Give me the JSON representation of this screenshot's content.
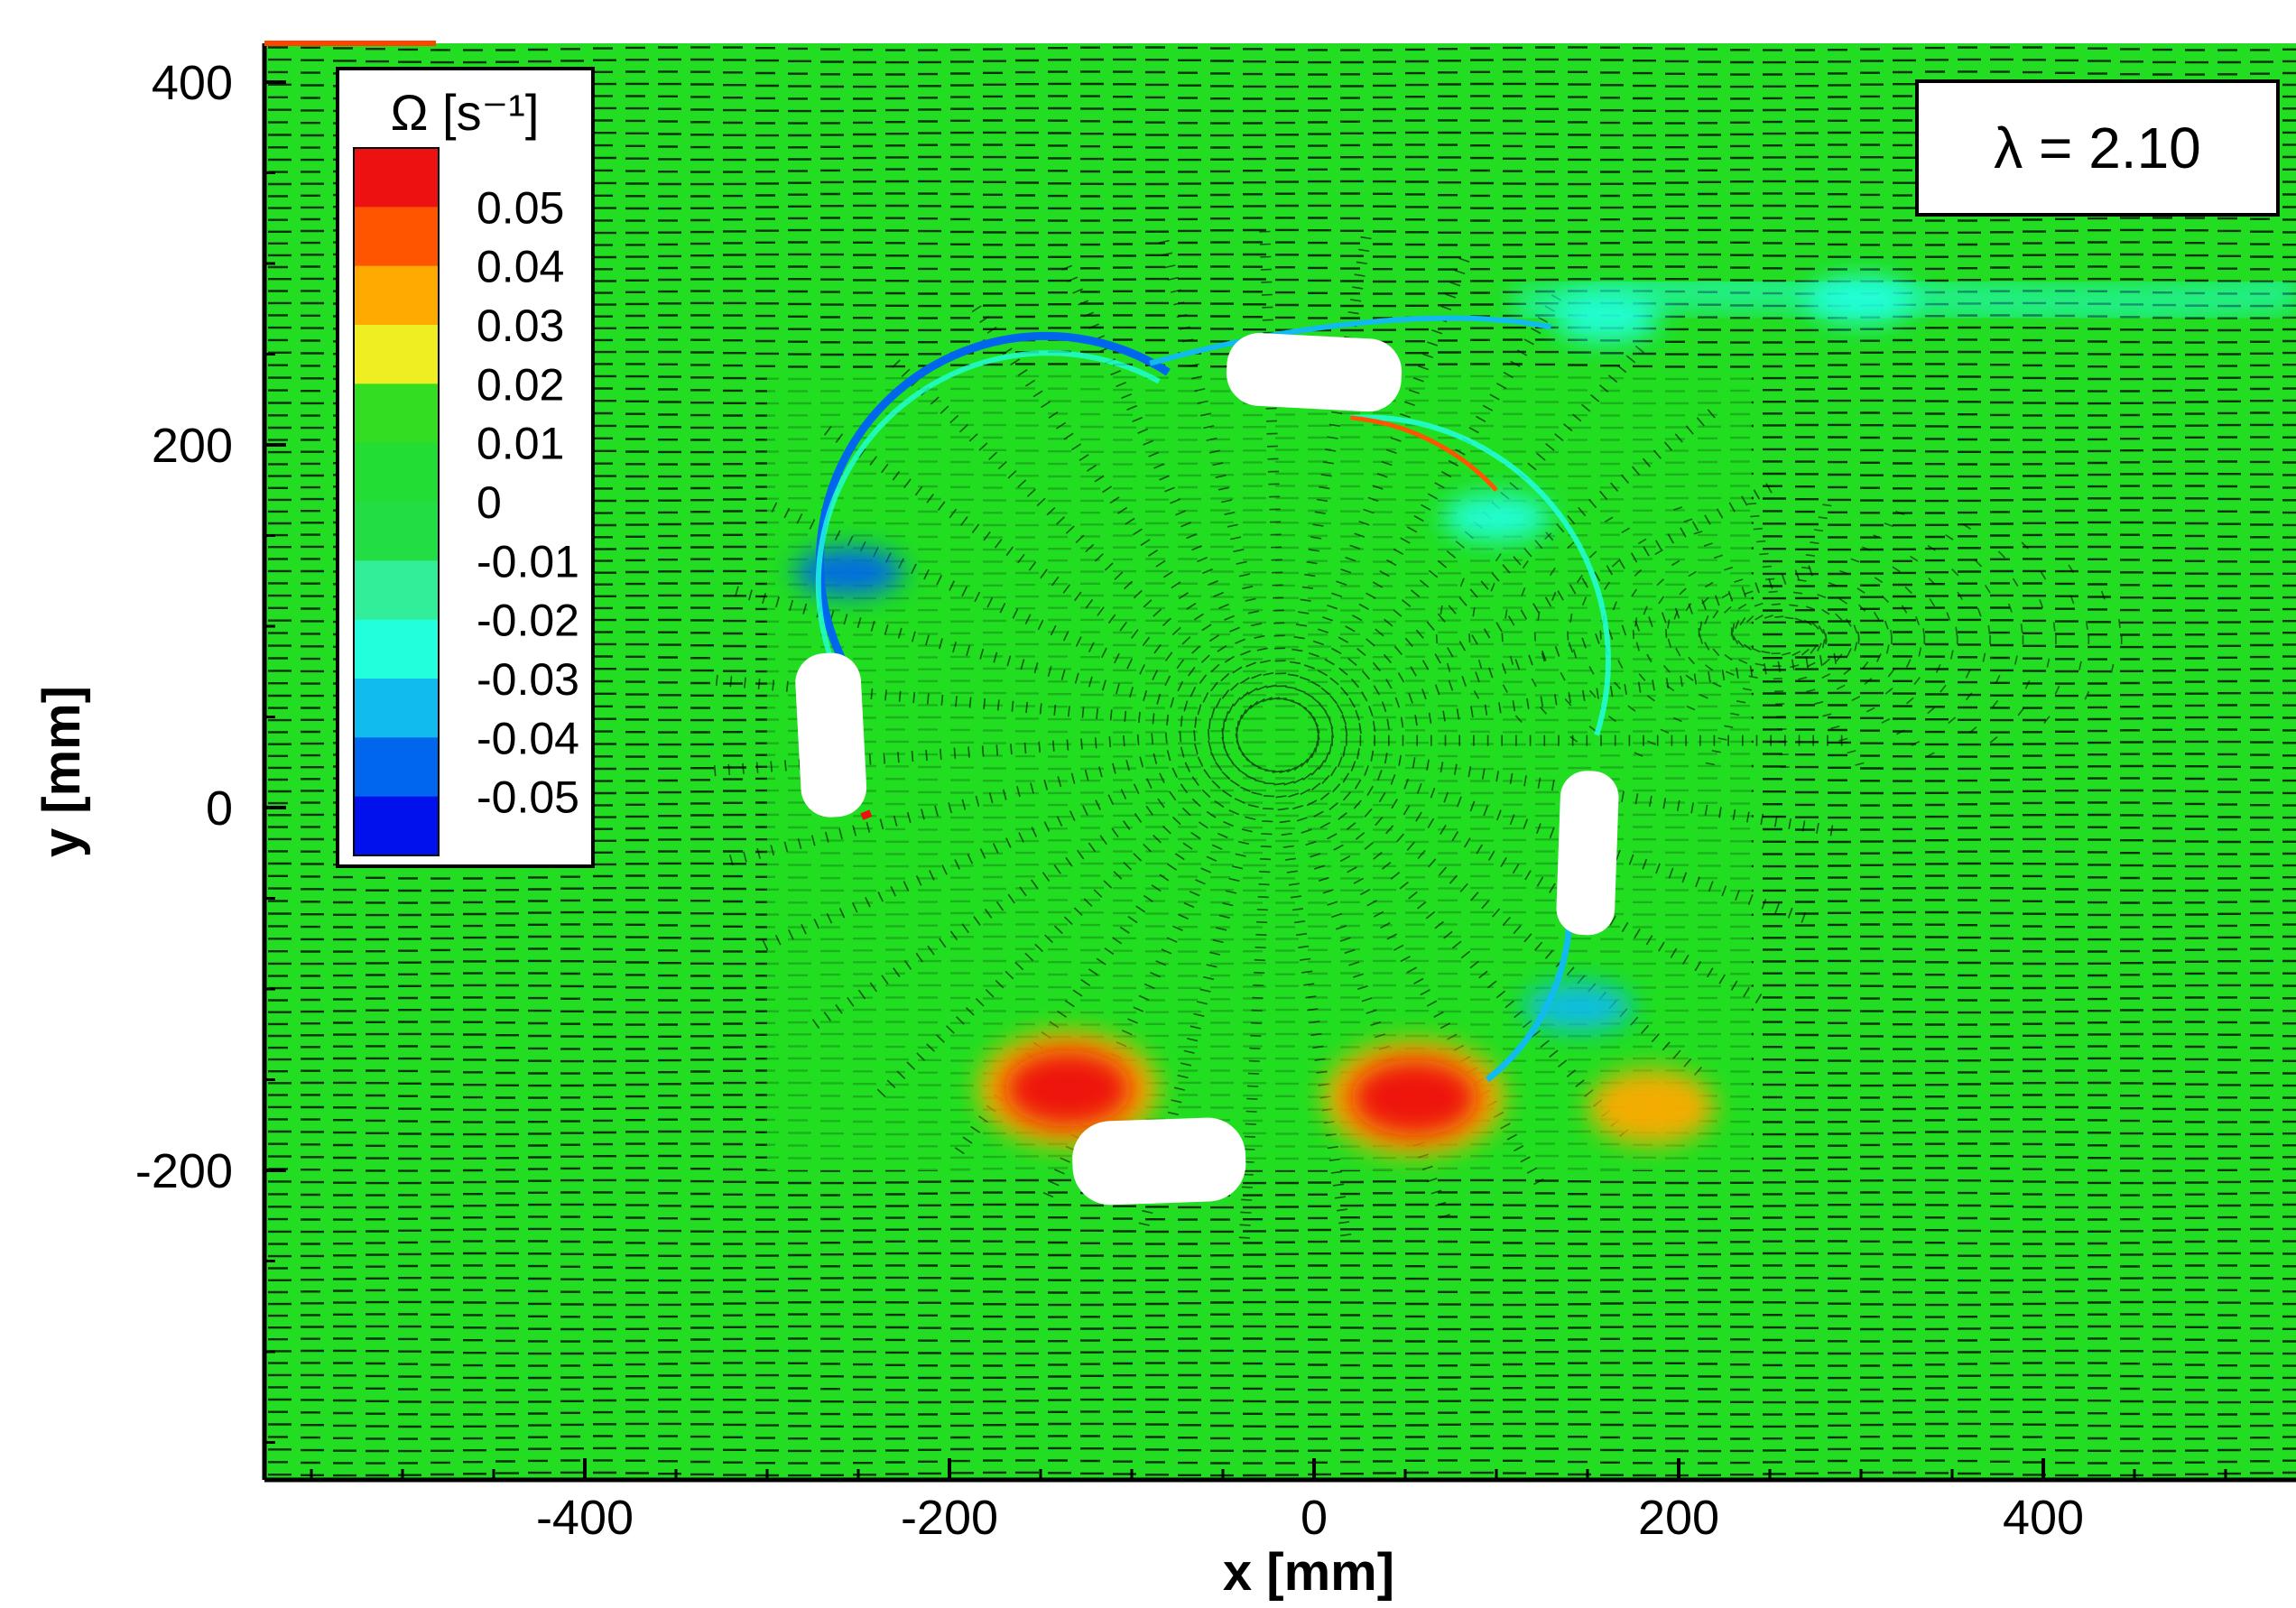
{
  "chart_data": {
    "type": "heatmap",
    "xlabel": "x [mm]",
    "ylabel": "y [mm]",
    "xlim": [
      -570,
      530
    ],
    "ylim": [
      -365,
      415
    ],
    "xticks": [
      -400,
      -200,
      0,
      200,
      400
    ],
    "yticks": [
      -200,
      0,
      200,
      400
    ],
    "annotation": "λ = 2.10",
    "background_color": "#22dd22",
    "vector_color": "#000000",
    "colorbar": {
      "title": "Ω [s⁻¹]",
      "levels": [
        0.05,
        0.04,
        0.03,
        0.02,
        0.01,
        0,
        -0.01,
        -0.02,
        -0.03,
        -0.04,
        -0.05
      ],
      "labels": [
        "0.05",
        "0.04",
        "0.03",
        "0.02",
        "0.01",
        "0",
        "-0.01",
        "-0.02",
        "-0.03",
        "-0.04",
        "-0.05"
      ],
      "colors": [
        "#ee1111",
        "#ff5500",
        "#ffaa00",
        "#eeee22",
        "#33dd22",
        "#22dd33",
        "#22dd44",
        "#33ee99",
        "#22ffdd",
        "#11bbee",
        "#0066ee",
        "#0011ee"
      ]
    },
    "blades": [
      {
        "x": 0,
        "y": 240
      },
      {
        "x": -265,
        "y": 40
      },
      {
        "x": 150,
        "y": -25
      },
      {
        "x": -85,
        "y": -195
      }
    ],
    "vorticity_regions": [
      {
        "x": -135,
        "y": -155,
        "value": 0.05
      },
      {
        "x": 55,
        "y": -160,
        "value": 0.05
      },
      {
        "x": 185,
        "y": -165,
        "value": 0.03
      },
      {
        "x": 300,
        "y": 280,
        "value": -0.03
      },
      {
        "x": 160,
        "y": 270,
        "value": -0.03
      },
      {
        "x": -255,
        "y": 130,
        "value": -0.05
      },
      {
        "x": 100,
        "y": 160,
        "value": -0.03
      },
      {
        "x": 145,
        "y": -110,
        "value": -0.04
      }
    ]
  }
}
